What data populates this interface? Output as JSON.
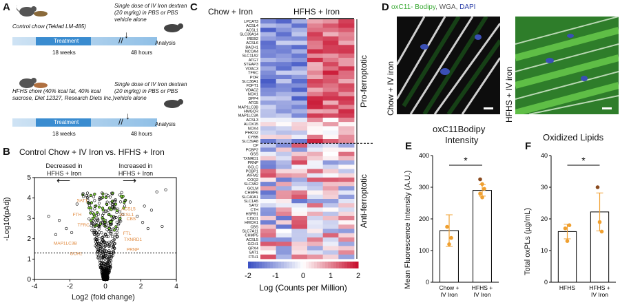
{
  "panel_letters": {
    "a": "A",
    "b": "B",
    "c": "C",
    "d": "D",
    "e": "E",
    "f": "F"
  },
  "panelA": {
    "ctrl_diet": "Control chow (Teklad LM-485)",
    "ctrl_dose": "Single dose of IV Iron dextran (20 mg/kg) in PBS or PBS vehicle alone",
    "treatment": "Treatment",
    "weeks": "18 weeks",
    "hours": "48 hours",
    "analysis": "Analysis",
    "hfhs_diet": "HFHS chow (40% kcal fat, 40% kcal sucrose, Diet 12327, Research Diets Inc.)",
    "hfhs_dose": "Single dose of IV Iron dextran (20 mg/kg) in PBS or PBS vehicle alone"
  },
  "panelB": {
    "title": "Control Chow + IV Iron vs. HFHS + Iron",
    "decreased": "Decreased in HFHS + Iron",
    "increased": "Increased in HFHS + Iron",
    "xlabel": "Log2 (fold change)",
    "ylabel": "-Log10(pAdj)",
    "xticks": [
      "-4",
      "-2",
      "0",
      "2",
      "4"
    ],
    "yticks": [
      "0",
      "1",
      "2",
      "3",
      "4",
      "5"
    ],
    "gene_labels": [
      "SAT1",
      "ACSL5",
      "FTH",
      "TFRC",
      "CBS",
      "FTL",
      "MAP1LC3B",
      "TXNRD1",
      "PRNP",
      "ACSL1",
      "GCH1"
    ]
  },
  "panelC": {
    "chow_label": "Chow + Iron",
    "hfhs_label": "HFHS + Iron",
    "pro_label": "Pro-ferroptotic",
    "anti_label": "Anti-ferroptotic",
    "scale_title": "Log (Counts per Million)",
    "scale_ticks": [
      "-2",
      "-1",
      "0",
      "1",
      "2"
    ],
    "pro_genes": [
      "LPCAT3",
      "ACSL4",
      "ACSL1",
      "SLC39A14",
      "IREB2",
      "ACSL6",
      "BACH1",
      "NCOA4",
      "SLC11A2",
      "ATG7",
      "STEAP3",
      "VDAC3",
      "TFRC",
      "POR",
      "SLC38A1",
      "FDFT1",
      "VDAC2",
      "NOX1",
      "DPP4",
      "ATG5",
      "MAP1LC3B",
      "HMGCR",
      "MAP1LC3A",
      "ACSL3",
      "ALOX15",
      "NOX4",
      "PHKG2",
      "CYBB",
      "SLC39A8"
    ],
    "anti_genes": [
      "CP",
      "PCBP2",
      "GSS",
      "TXNRD1",
      "PRNP",
      "GCLC",
      "PCBP1",
      "AIFM2",
      "COQ2",
      "SLC3A2",
      "GCLM",
      "CHMP6",
      "SLC40A1",
      "SLC1A5",
      "SAT2",
      "CTH",
      "HSPB1",
      "CISD1",
      "HMOX1",
      "CBS",
      "SLC7A11",
      "CHMP5",
      "ACSL5",
      "GCH1",
      "GPX4",
      "SAT1",
      "FTH1"
    ]
  },
  "panelD": {
    "stain_green": "oxC11- Bodipy",
    "stain_white": "WGA",
    "stain_blue": "DAPI",
    "left": "Chow + IV iron",
    "right": "HFHS + IV iron",
    "scale": "10 microns"
  },
  "panelE": {
    "title_line1": "oxC11Bodipy",
    "title_line2": "Intensity",
    "ylabel": "Mean Fluorescence Intensity (A.U.)",
    "yticks": [
      "0",
      "100",
      "200",
      "300",
      "400"
    ],
    "sig": "*",
    "categories": [
      "Chow + IV Iron",
      "HFHS + IV Iron"
    ]
  },
  "panelF": {
    "title": "Oxidized Lipids",
    "ylabel": "Total oxPLs (µg/mL)",
    "yticks": [
      "0",
      "10",
      "20",
      "30",
      "40"
    ],
    "sig": "*",
    "categories": [
      "HFHS",
      "HFHS + IV Iron"
    ]
  },
  "chart_data": [
    {
      "type": "scatter",
      "title": "Control Chow + IV Iron vs. HFHS + Iron",
      "xlabel": "Log2 (fold change)",
      "ylabel": "-Log10(pAdj)",
      "xlim": [
        -4,
        4
      ],
      "ylim": [
        0,
        5
      ],
      "threshold_y": 1.3
    },
    {
      "type": "heatmap",
      "columns": [
        "Chow + Iron",
        "Chow + Iron",
        "Chow + Iron",
        "HFHS + Iron",
        "HFHS + Iron",
        "HFHS + Iron"
      ],
      "color_range": [
        -2,
        2
      ],
      "colors": {
        "low": "#3d52c4",
        "mid": "#ffffff",
        "high": "#c8102e"
      }
    },
    {
      "type": "bar",
      "title": "oxC11Bodipy Intensity",
      "categories": [
        "Chow + IV Iron",
        "HFHS + IV Iron"
      ],
      "values": [
        163,
        290
      ],
      "errors": [
        50,
        18
      ],
      "points": [
        [
          175,
          120,
          140
        ],
        [
          325,
          310,
          295,
          280,
          268
        ]
      ],
      "ylim": [
        0,
        400
      ],
      "ylabel": "Mean Fluorescence Intensity (A.U.)"
    },
    {
      "type": "bar",
      "title": "Oxidized Lipids",
      "categories": [
        "HFHS",
        "HFHS + IV Iron"
      ],
      "values": [
        16,
        22.2
      ],
      "errors": [
        2.3,
        6
      ],
      "points": [
        [
          17,
          13,
          18
        ],
        [
          30,
          19,
          16
        ]
      ],
      "ylim": [
        0,
        40
      ],
      "ylabel": "Total oxPLs (µg/mL)"
    }
  ],
  "colors": {
    "timeline": "#a8cdea",
    "volcano_gene": "#e0873a",
    "green_dot": "#7fd13b",
    "bar_point": "#f0a030",
    "bar_point_dark": "#8a4a1e"
  }
}
